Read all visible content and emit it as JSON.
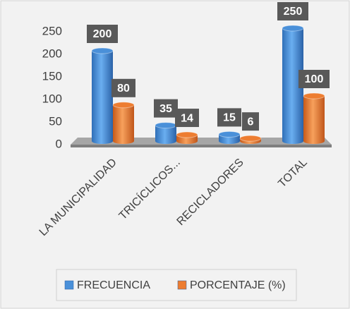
{
  "chart_data": {
    "type": "bar3d",
    "categories": [
      "LA MUNICIPALIDAD",
      "TRICÍCLICOS...",
      "RECICLADORES",
      "TOTAL"
    ],
    "series": [
      {
        "name": "FRECUENCIA",
        "color": "#4a90d9",
        "values": [
          200,
          35,
          15,
          250
        ]
      },
      {
        "name": "PORCENTAJE (%)",
        "color": "#ed7d31",
        "values": [
          80,
          14,
          6,
          100
        ]
      }
    ],
    "ylim": [
      0,
      250
    ],
    "yticks": [
      0,
      50,
      100,
      150,
      200,
      250
    ],
    "legend": "bottom"
  }
}
